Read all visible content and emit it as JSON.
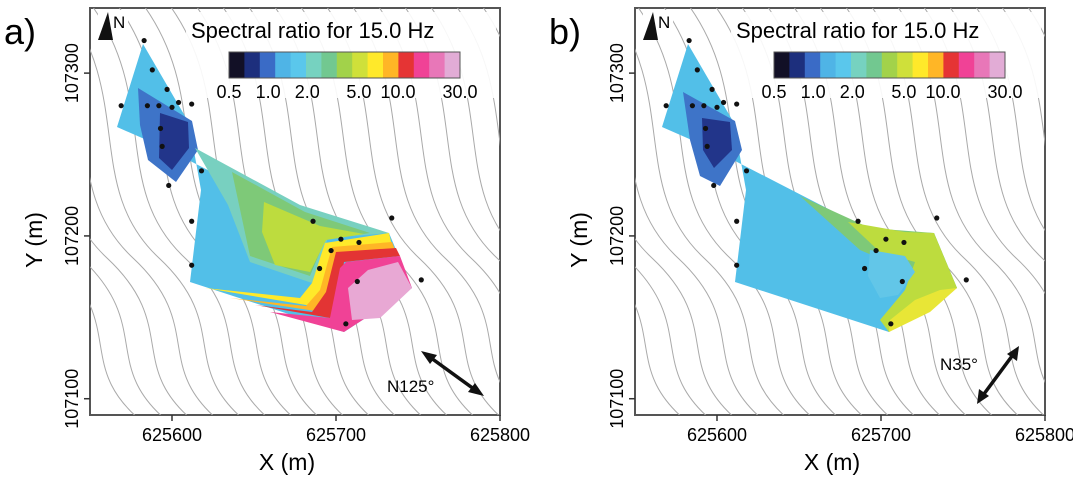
{
  "chart_data": [
    {
      "type": "heatmap",
      "panel": "a)",
      "title": "Spectral ratio for 15.0 Hz",
      "xlabel": "X (m)",
      "ylabel": "Y (m)",
      "xlim": [
        625550,
        625800
      ],
      "ylim": [
        107090,
        107340
      ],
      "xticks": [
        "625600",
        "625700",
        "625800"
      ],
      "yticks": [
        "107100",
        "107200",
        "107300"
      ],
      "north_label": "N",
      "direction_label": "N125°",
      "colorbar_ticks": [
        "0.5",
        "1.0",
        "2.0",
        "5.0",
        "10.0",
        "30.0"
      ],
      "stations": [
        {
          "x": 625583,
          "y": 107320
        },
        {
          "x": 625588,
          "y": 107302
        },
        {
          "x": 625597,
          "y": 107290
        },
        {
          "x": 625569,
          "y": 107280
        },
        {
          "x": 625585,
          "y": 107280
        },
        {
          "x": 625592,
          "y": 107280
        },
        {
          "x": 625600,
          "y": 107279
        },
        {
          "x": 625604,
          "y": 107282
        },
        {
          "x": 625612,
          "y": 107281
        },
        {
          "x": 625593,
          "y": 107266
        },
        {
          "x": 625594,
          "y": 107255
        },
        {
          "x": 625618,
          "y": 107240
        },
        {
          "x": 625598,
          "y": 107231
        },
        {
          "x": 625612,
          "y": 107209
        },
        {
          "x": 625686,
          "y": 107209
        },
        {
          "x": 625734,
          "y": 107211
        },
        {
          "x": 625703,
          "y": 107198
        },
        {
          "x": 625697,
          "y": 107191
        },
        {
          "x": 625714,
          "y": 107196
        },
        {
          "x": 625690,
          "y": 107180
        },
        {
          "x": 625713,
          "y": 107172
        },
        {
          "x": 625752,
          "y": 107173
        },
        {
          "x": 625612,
          "y": 107182
        },
        {
          "x": 625706,
          "y": 107146
        }
      ]
    },
    {
      "type": "heatmap",
      "panel": "b)",
      "title": "Spectral ratio for 15.0 Hz",
      "xlabel": "X (m)",
      "ylabel": "Y (m)",
      "xlim": [
        625550,
        625800
      ],
      "ylim": [
        107090,
        107340
      ],
      "xticks": [
        "625600",
        "625700",
        "625800"
      ],
      "yticks": [
        "107100",
        "107200",
        "107300"
      ],
      "north_label": "N",
      "direction_label": "N35°",
      "colorbar_ticks": [
        "0.5",
        "1.0",
        "2.0",
        "5.0",
        "10.0",
        "30.0"
      ],
      "stations": [
        {
          "x": 625583,
          "y": 107320
        },
        {
          "x": 625588,
          "y": 107302
        },
        {
          "x": 625597,
          "y": 107290
        },
        {
          "x": 625569,
          "y": 107280
        },
        {
          "x": 625585,
          "y": 107280
        },
        {
          "x": 625592,
          "y": 107280
        },
        {
          "x": 625600,
          "y": 107279
        },
        {
          "x": 625604,
          "y": 107282
        },
        {
          "x": 625612,
          "y": 107281
        },
        {
          "x": 625593,
          "y": 107266
        },
        {
          "x": 625594,
          "y": 107255
        },
        {
          "x": 625618,
          "y": 107240
        },
        {
          "x": 625598,
          "y": 107231
        },
        {
          "x": 625612,
          "y": 107209
        },
        {
          "x": 625686,
          "y": 107209
        },
        {
          "x": 625734,
          "y": 107211
        },
        {
          "x": 625703,
          "y": 107198
        },
        {
          "x": 625697,
          "y": 107191
        },
        {
          "x": 625714,
          "y": 107196
        },
        {
          "x": 625690,
          "y": 107180
        },
        {
          "x": 625713,
          "y": 107172
        },
        {
          "x": 625752,
          "y": 107173
        },
        {
          "x": 625612,
          "y": 107182
        },
        {
          "x": 625706,
          "y": 107146
        }
      ]
    }
  ],
  "colorbar_colors": [
    "#121026",
    "#1d2f7d",
    "#3a6bc6",
    "#4fb4e6",
    "#5ac7ec",
    "#76d2c0",
    "#72c890",
    "#a2d24a",
    "#cfe03a",
    "#ffe92a",
    "#ffb626",
    "#e53434",
    "#f04296",
    "#e877b8",
    "#e2acd6"
  ]
}
